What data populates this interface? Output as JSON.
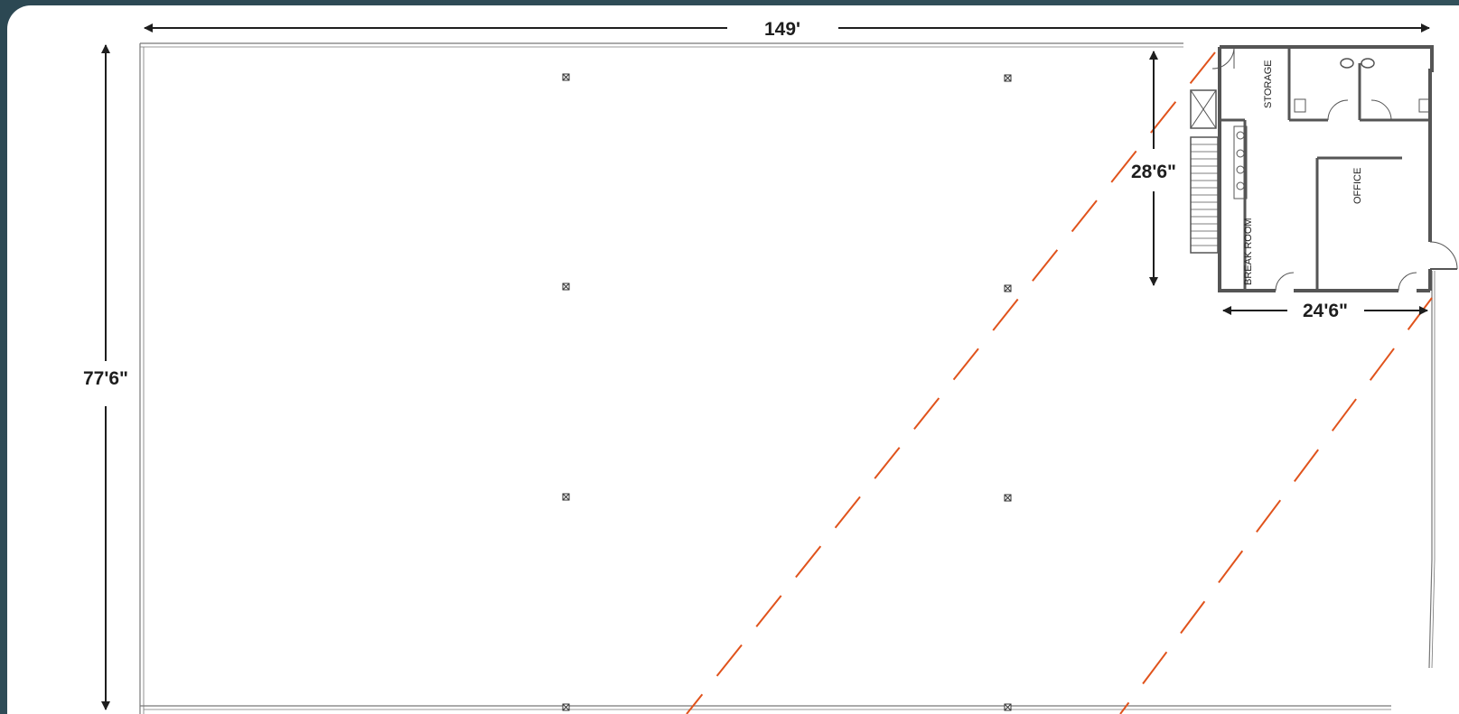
{
  "dimensions": {
    "overall_width": "149'",
    "overall_depth": "77'6\"",
    "office_depth": "28'6\"",
    "office_width": "24'6\""
  },
  "rooms": {
    "storage": "STORAGE",
    "office": "OFFICE",
    "break_room": "BREAK ROOM"
  },
  "colors": {
    "background": "#2f4b57",
    "wall": "#555555",
    "dimension_line": "#1e1e1e",
    "dashed_line": "#e0531c"
  }
}
